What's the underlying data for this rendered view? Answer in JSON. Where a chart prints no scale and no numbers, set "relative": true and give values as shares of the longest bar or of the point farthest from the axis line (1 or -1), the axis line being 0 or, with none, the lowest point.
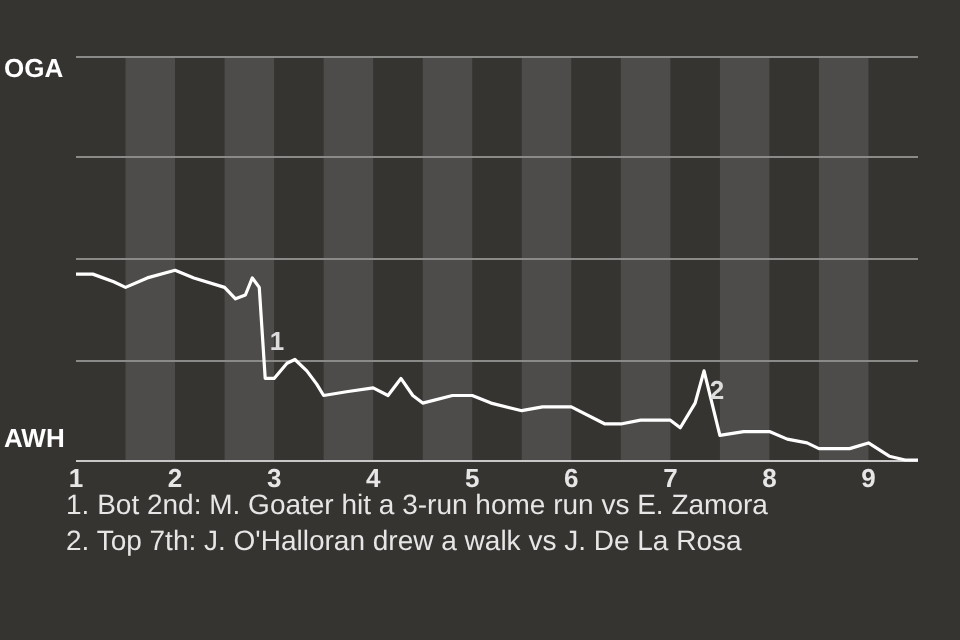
{
  "chart_data": {
    "type": "line",
    "relative": true,
    "x": [
      1,
      1.17,
      1.38,
      1.5,
      1.72,
      2,
      2.19,
      2.5,
      2.61,
      2.71,
      2.78,
      2.85,
      2.91,
      2.98,
      3,
      3.13,
      3.21,
      3.33,
      3.43,
      3.5,
      3.73,
      4,
      4.15,
      4.28,
      4.4,
      4.5,
      4.8,
      5,
      5.19,
      5.5,
      5.71,
      6,
      6.34,
      6.5,
      6.7,
      7,
      7.1,
      7.25,
      7.34,
      7.5,
      7.74,
      8,
      8.18,
      8.38,
      8.5,
      8.81,
      9,
      9.21,
      9.37,
      9.5
    ],
    "series": [
      {
        "color": "#ffffff",
        "values": [
          0.98,
          0.98,
          0.94,
          0.91,
          0.96,
          1,
          0.96,
          0.91,
          0.85,
          0.87,
          0.96,
          0.91,
          0.43,
          0.43,
          0.43,
          0.51,
          0.53,
          0.47,
          0.4,
          0.34,
          0.36,
          0.38,
          0.34,
          0.43,
          0.34,
          0.3,
          0.34,
          0.34,
          0.3,
          0.26,
          0.28,
          0.28,
          0.19,
          0.19,
          0.21,
          0.21,
          0.17,
          0.3,
          0.47,
          0.13,
          0.15,
          0.15,
          0.11,
          0.09,
          0.06,
          0.06,
          0.09,
          0.02,
          0,
          0
        ]
      }
    ],
    "xlim": [
      1,
      9.5
    ],
    "xticks": [
      1,
      2,
      3,
      4,
      5,
      6,
      7,
      8,
      9
    ],
    "ref_lines": [
      {
        "axis": "y",
        "value": 0.53,
        "color": "#8a8a88"
      },
      {
        "axis": "y",
        "value": 1.06,
        "color": "#8a8a88"
      },
      {
        "axis": "y",
        "value": 1.6,
        "color": "#8a8a88"
      },
      {
        "axis": "y",
        "value": 2.13,
        "color": "#8a8a88"
      }
    ],
    "marker": "none",
    "bands": [
      {
        "axis": "x",
        "from": 1.5,
        "to": 2,
        "color": "#4d4c4a"
      },
      {
        "axis": "x",
        "from": 2.5,
        "to": 3,
        "color": "#4d4c4a"
      },
      {
        "axis": "x",
        "from": 3.5,
        "to": 4,
        "color": "#4d4c4a"
      },
      {
        "axis": "x",
        "from": 4.5,
        "to": 5,
        "color": "#4d4c4a"
      },
      {
        "axis": "x",
        "from": 5.5,
        "to": 6,
        "color": "#4d4c4a"
      },
      {
        "axis": "x",
        "from": 6.5,
        "to": 7,
        "color": "#4d4c4a"
      },
      {
        "axis": "x",
        "from": 7.5,
        "to": 8,
        "color": "#4d4c4a"
      },
      {
        "axis": "x",
        "from": 8.5,
        "to": 9,
        "color": "#4d4c4a"
      }
    ],
    "annotations": [
      "OGA",
      "AWH",
      {
        "text": "1",
        "x": 3.03,
        "y": 0.62
      },
      {
        "text": "2",
        "x": 7.47,
        "y": 0.36
      },
      "1. Bot 2nd: M. Goater hit a 3-run home run vs E. Zamora",
      "2. Top 7th: J. O'Halloran drew a walk vs J. De La Rosa"
    ]
  }
}
